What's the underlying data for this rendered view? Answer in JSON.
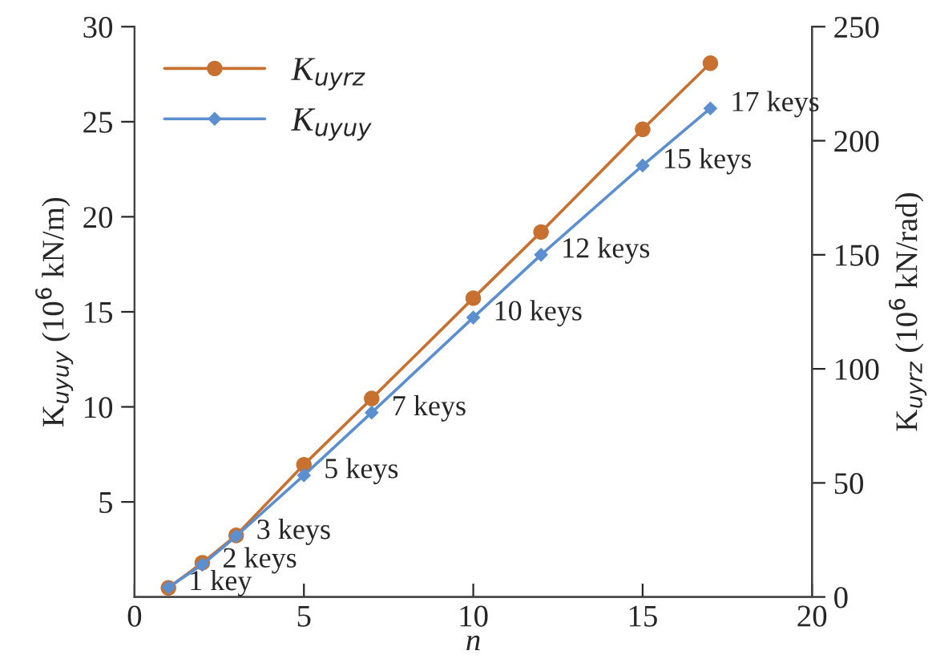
{
  "chart_data": {
    "type": "line",
    "xlabel": "n",
    "ylabel": "K$_{uyuy}$ (10$^{6}$ kN/m)",
    "y2label": "K$_{uyrz}$ (10$^{6}$ kN/rad)",
    "x": [
      1,
      2,
      3,
      5,
      7,
      10,
      12,
      15,
      17
    ],
    "series": [
      {
        "name": "K$_{uyrz}$",
        "color": "#c8702f",
        "axis": "y2",
        "marker": "circle",
        "values": [
          4,
          15,
          27,
          58,
          87,
          131,
          160,
          205,
          234
        ]
      },
      {
        "name": "K$_{uyuy}$",
        "color": "#5b8fd0",
        "marker": "diamond",
        "values": [
          0.5,
          1.7,
          3.2,
          6.4,
          9.7,
          14.7,
          18.0,
          22.7,
          25.7
        ]
      }
    ],
    "xlim": [
      0,
      20
    ],
    "xticks": [
      0,
      5,
      10,
      15,
      20
    ],
    "ylim": [
      0,
      30
    ],
    "yticks": [
      5,
      10,
      15,
      20,
      25,
      30
    ],
    "y2lim": [
      0,
      250
    ],
    "y2ticks": [
      0,
      50,
      100,
      150,
      200,
      250
    ],
    "annotations": [
      {
        "text": "1 key",
        "x": 1,
        "y": 0.5
      },
      {
        "text": "2 keys",
        "x": 2,
        "y": 1.7
      },
      {
        "text": "3 keys",
        "x": 3,
        "y": 3.2
      },
      {
        "text": "5 keys",
        "x": 5,
        "y": 6.4
      },
      {
        "text": "7 keys",
        "x": 7,
        "y": 9.7
      },
      {
        "text": "10 keys",
        "x": 10,
        "y": 14.7
      },
      {
        "text": "12 keys",
        "x": 12,
        "y": 18.0
      },
      {
        "text": "15 keys",
        "x": 15,
        "y": 22.7
      },
      {
        "text": "17 keys",
        "x": 17,
        "y": 25.7
      }
    ],
    "legend": "top left",
    "grid": false,
    "line_style": "solid"
  }
}
